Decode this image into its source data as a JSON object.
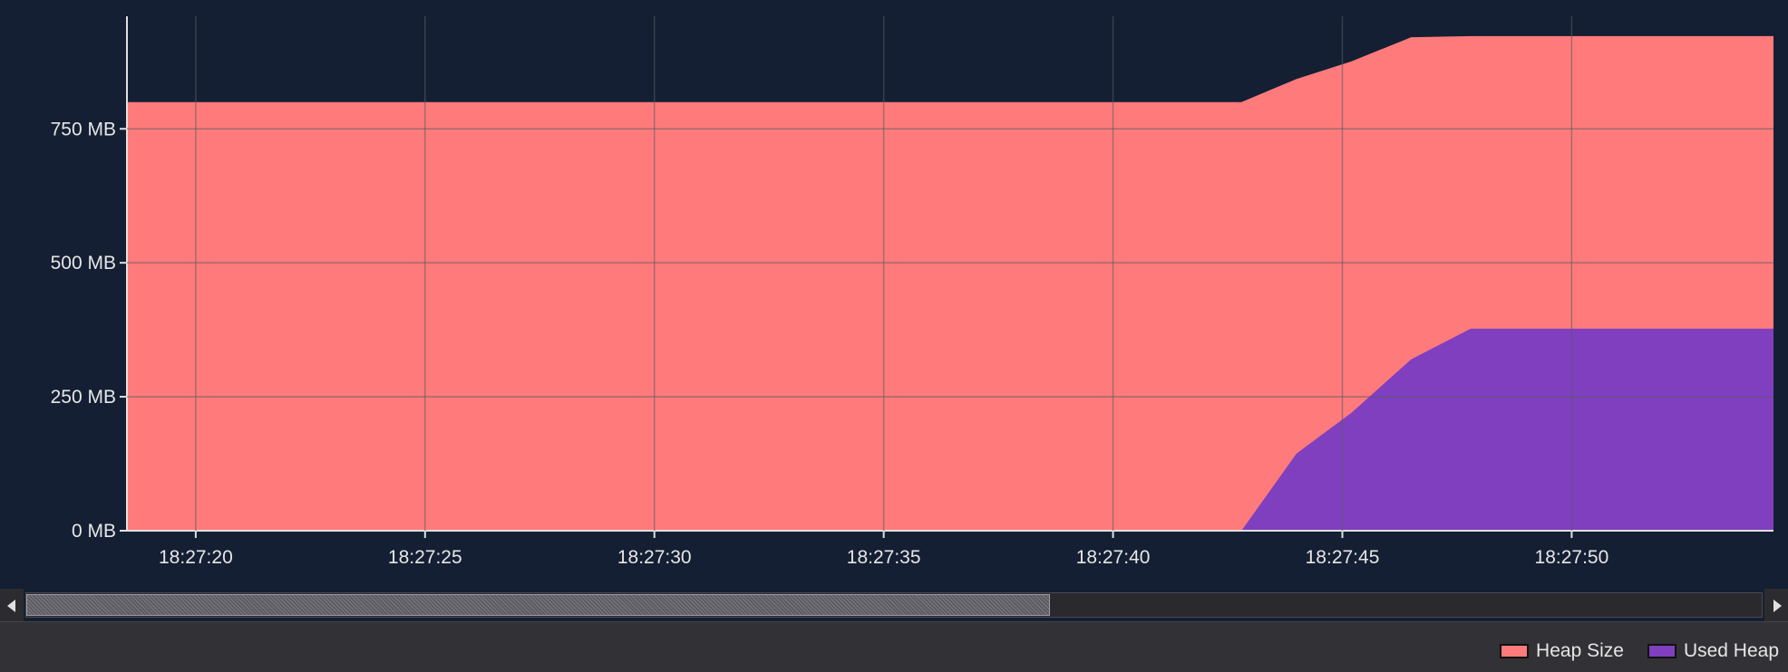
{
  "chart_data": {
    "type": "area",
    "x": [
      "18:27:18.5",
      "18:27:42.8",
      "18:27:44.0",
      "18:27:45.2",
      "18:27:46.5",
      "18:27:47.8",
      "18:27:54.4"
    ],
    "series": [
      {
        "name": "Heap Size",
        "color": "#ff7b7b",
        "values": [
          800,
          800,
          843,
          876,
          921,
          923,
          923
        ]
      },
      {
        "name": "Used Heap",
        "color": "#7f3fbf",
        "values": [
          0,
          0,
          144,
          220,
          320,
          377,
          377
        ]
      }
    ],
    "xticks": [
      "18:27:20",
      "18:27:25",
      "18:27:30",
      "18:27:35",
      "18:27:40",
      "18:27:45",
      "18:27:50"
    ],
    "yticks": [
      "0 MB",
      "250 MB",
      "500 MB",
      "750 MB"
    ],
    "ytick_values": [
      0,
      250,
      500,
      750
    ],
    "xlim": [
      "18:27:18.5",
      "18:27:54.4"
    ],
    "ylim": [
      0,
      960
    ],
    "grid": true,
    "legend": "bottom-right",
    "title": "",
    "xlabel": "",
    "ylabel": ""
  },
  "scrollbar": {
    "thumb_start": 0,
    "thumb_end": 0.59
  }
}
